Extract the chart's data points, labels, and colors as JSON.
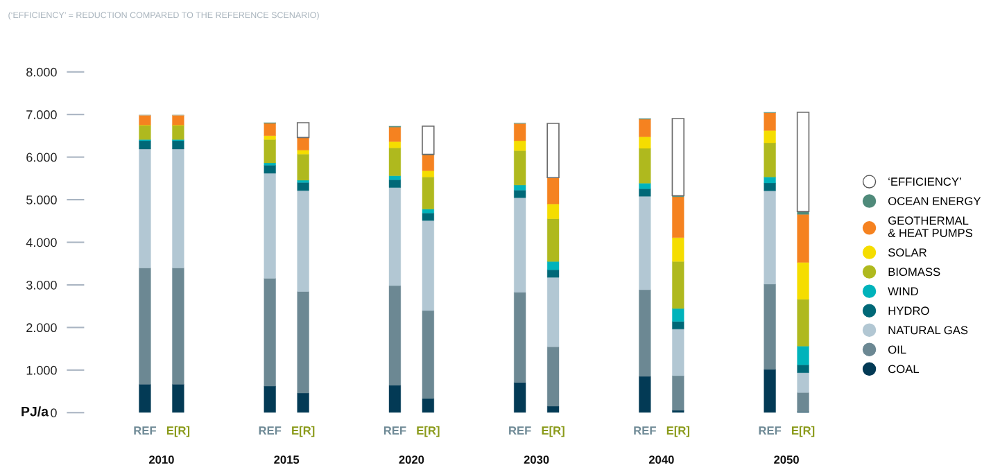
{
  "chart_data": {
    "type": "bar",
    "stacked": true,
    "subtitle": "(‘EFFICIENCY’ = REDUCTION COMPARED TO THE REFERENCE SCENARIO)",
    "ylabel": "PJ/a",
    "categories": [
      "REF",
      "E[R]",
      "REF",
      "E[R]",
      "REF",
      "E[R]",
      "REF",
      "E[R]",
      "REF",
      "E[R]",
      "REF",
      "E[R]"
    ],
    "annotations": [
      "2010",
      "2015",
      "2020",
      "2030",
      "2040",
      "2050"
    ],
    "series": [
      {
        "name": "COAL",
        "color": "#033a55",
        "values": [
          667,
          667,
          623,
          460,
          645,
          336,
          710,
          152,
          851,
          54,
          1013,
          27
        ]
      },
      {
        "name": "OIL",
        "color": "#6c8893",
        "values": [
          2731,
          2731,
          2531,
          2386,
          2336,
          2060,
          2119,
          1393,
          2033,
          813,
          2006,
          445
        ]
      },
      {
        "name": "NATURAL GAS",
        "color": "#b2c7d3",
        "values": [
          2792,
          2792,
          2467,
          2368,
          2304,
          2114,
          2217,
          1631,
          2195,
          1095,
          2190,
          466
        ]
      },
      {
        "name": "HYDRO",
        "color": "#006877",
        "values": [
          195,
          195,
          189,
          190,
          184,
          178,
          179,
          179,
          179,
          179,
          184,
          184
        ]
      },
      {
        "name": "WIND",
        "color": "#00b3bb",
        "values": [
          27,
          27,
          55,
          54,
          92,
          92,
          119,
          195,
          130,
          303,
          141,
          439
        ]
      },
      {
        "name": "BIOMASS",
        "color": "#afb91e",
        "values": [
          331,
          331,
          546,
          612,
          656,
          754,
          808,
          1003,
          818,
          1106,
          802,
          1101
        ]
      },
      {
        "name": "SOLAR",
        "color": "#f5dd00",
        "values": [
          10,
          10,
          93,
          93,
          146,
          146,
          233,
          347,
          271,
          558,
          287,
          866
        ]
      },
      {
        "name": "GEOTHERMAL\n& HEAT PUMPS",
        "color": "#f58220",
        "values": [
          234,
          234,
          288,
          298,
          342,
          369,
          401,
          618,
          412,
          960,
          418,
          1128
        ]
      },
      {
        "name": "OCEAN ENERGY",
        "color": "#4f8a7a",
        "values": [
          0,
          0,
          21,
          0,
          27,
          16,
          16,
          0,
          22,
          27,
          16,
          65
        ]
      },
      {
        "name": "‘EFFICIENCY’",
        "color": "#ffffff",
        "values": [
          0,
          0,
          0,
          347,
          0,
          661,
          0,
          1273,
          0,
          1810,
          0,
          2331
        ]
      }
    ],
    "ylim": [
      0,
      8000
    ],
    "yticks": [
      0,
      {
        "value": 1000,
        "label": "1.000"
      },
      {
        "value": 2000,
        "label": "2.000"
      },
      {
        "value": 3000,
        "label": "3.000"
      },
      {
        "value": 4000,
        "label": "4.000"
      },
      {
        "value": 5000,
        "label": "5.000"
      },
      {
        "value": 6000,
        "label": "6.000"
      },
      {
        "value": 7000,
        "label": "7.000"
      },
      {
        "value": 8000,
        "label": "8.000"
      }
    ],
    "grid": false,
    "legend": "right"
  }
}
